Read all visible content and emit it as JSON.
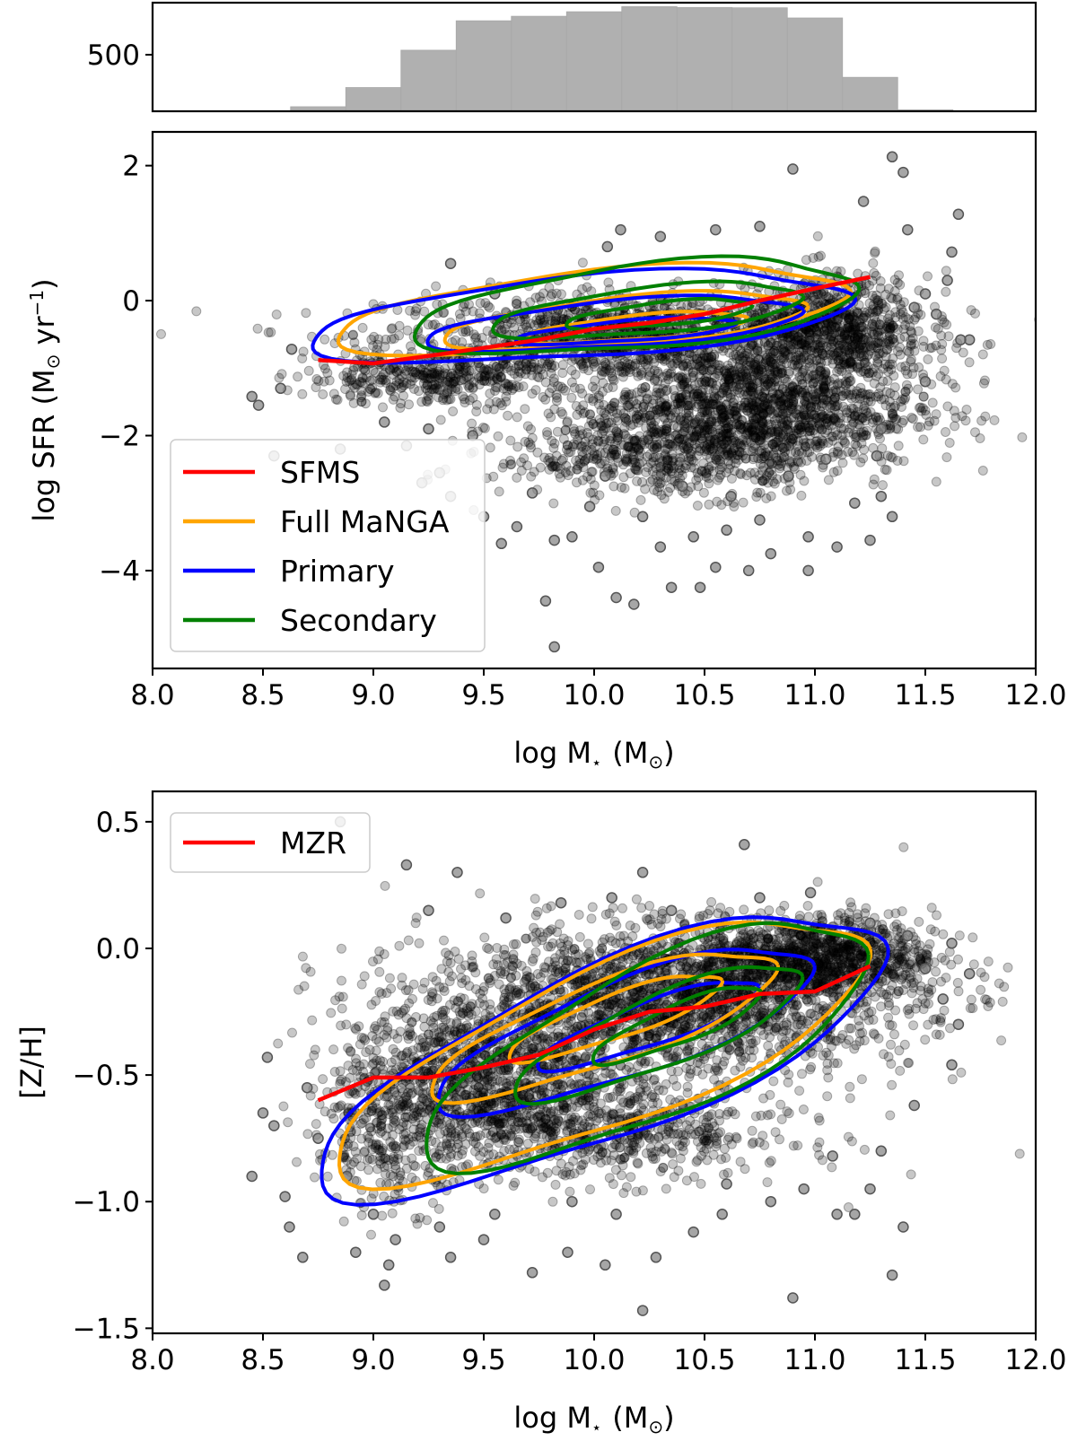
{
  "colors": {
    "sfms": "#ff0000",
    "full_manga": "#ffa500",
    "primary": "#0000ff",
    "secondary": "#008000",
    "hist_bar": "#b0b0b0",
    "points": "#000000"
  },
  "chart_data": [
    {
      "panel": "histogram",
      "type": "bar",
      "xlim": [
        8.0,
        12.0
      ],
      "ylim": [
        0,
        960
      ],
      "ytick_values": [
        500
      ],
      "ytick_labels": [
        "500"
      ],
      "bin_edges": [
        8.625,
        8.875,
        9.125,
        9.375,
        9.625,
        9.875,
        10.125,
        10.375,
        10.625,
        10.875,
        11.125,
        11.375,
        11.625
      ],
      "values": [
        40,
        210,
        540,
        800,
        840,
        880,
        925,
        918,
        915,
        825,
        300,
        12
      ],
      "x": [
        8.75,
        9.0,
        9.25,
        9.5,
        9.75,
        10.0,
        10.25,
        10.5,
        10.75,
        11.0,
        11.25,
        11.5
      ]
    },
    {
      "panel": "sfr",
      "type": "scatter",
      "xlim": [
        8.0,
        12.0
      ],
      "ylim": [
        -5.45,
        2.5
      ],
      "xlabel": "log M",
      "xlabel_sub": "⋆",
      "xlabel_unit": "(M",
      "xlabel_unit_sub": "⊙",
      "xlabel_close": ")",
      "ylabel": "log SFR (M",
      "ylabel_sub": "⊙",
      "ylabel_rest": " yr",
      "ylabel_sup": "−1",
      "ylabel_close": ")",
      "xtick_values": [
        8.0,
        8.5,
        9.0,
        9.5,
        10.0,
        10.5,
        11.0,
        11.5,
        12.0
      ],
      "xtick_labels": [
        "8.0",
        "8.5",
        "9.0",
        "9.5",
        "10.0",
        "10.5",
        "11.0",
        "11.5",
        "12.0"
      ],
      "ytick_values": [
        2,
        0,
        -2,
        -4
      ],
      "ytick_labels": [
        "2",
        "0",
        "−2",
        "−4"
      ],
      "legend_position": "lower-left",
      "legend": [
        "SFMS",
        "Full MaNGA",
        "Primary",
        "Secondary"
      ],
      "relation": {
        "name": "SFMS",
        "x": [
          8.75,
          9.0,
          9.25,
          9.5,
          9.75,
          10.0,
          10.25,
          10.5,
          10.75,
          11.0,
          11.25
        ],
        "y": [
          -0.88,
          -0.93,
          -0.82,
          -0.7,
          -0.58,
          -0.42,
          -0.33,
          -0.2,
          0.0,
          0.18,
          0.35
        ]
      },
      "contours": [
        {
          "series": "Full MaNGA",
          "level": "outer",
          "cx": 10.0,
          "cy": -0.15,
          "rx": 1.15,
          "ry": 0.58,
          "tilt": 0.28
        },
        {
          "series": "Full MaNGA",
          "level": "middle",
          "cx": 10.15,
          "cy": -0.3,
          "rx": 0.82,
          "ry": 0.35,
          "tilt": 0.28
        },
        {
          "series": "Full MaNGA",
          "level": "inner",
          "cx": 10.2,
          "cy": -0.4,
          "rx": 0.5,
          "ry": 0.18,
          "tilt": 0.28
        },
        {
          "series": "Primary",
          "level": "outer",
          "cx": 9.95,
          "cy": -0.25,
          "rx": 1.22,
          "ry": 0.6,
          "tilt": 0.25
        },
        {
          "series": "Primary",
          "level": "middle",
          "cx": 10.1,
          "cy": -0.35,
          "rx": 0.85,
          "ry": 0.34,
          "tilt": 0.25
        },
        {
          "series": "Primary",
          "level": "inner",
          "cx": 10.15,
          "cy": -0.45,
          "rx": 0.5,
          "ry": 0.15,
          "tilt": 0.25
        },
        {
          "series": "Secondary",
          "level": "outer",
          "cx": 10.2,
          "cy": -0.1,
          "rx": 1.0,
          "ry": 0.62,
          "tilt": 0.32
        },
        {
          "series": "Secondary",
          "level": "middle",
          "cx": 10.25,
          "cy": -0.15,
          "rx": 0.7,
          "ry": 0.34,
          "tilt": 0.32
        },
        {
          "series": "Secondary",
          "level": "inner",
          "cx": 10.3,
          "cy": -0.2,
          "rx": 0.42,
          "ry": 0.17,
          "tilt": 0.32
        }
      ],
      "points": [
        [
          11.35,
          2.13
        ],
        [
          11.4,
          1.9
        ],
        [
          10.9,
          1.95
        ],
        [
          11.22,
          1.47
        ],
        [
          11.42,
          1.05
        ],
        [
          11.65,
          1.28
        ],
        [
          11.62,
          0.72
        ],
        [
          11.7,
          -0.58
        ],
        [
          11.66,
          -0.58
        ],
        [
          11.55,
          -0.2
        ],
        [
          11.5,
          0.1
        ],
        [
          11.28,
          -2.3
        ],
        [
          11.3,
          -2.9
        ],
        [
          11.35,
          -3.2
        ],
        [
          11.25,
          -3.55
        ],
        [
          11.1,
          -3.65
        ],
        [
          10.97,
          -3.5
        ],
        [
          10.97,
          -4.0
        ],
        [
          10.8,
          -3.75
        ],
        [
          10.7,
          -4.0
        ],
        [
          10.55,
          -3.95
        ],
        [
          10.48,
          -4.25
        ],
        [
          10.35,
          -4.25
        ],
        [
          10.3,
          -3.65
        ],
        [
          10.18,
          -4.5
        ],
        [
          10.1,
          -4.4
        ],
        [
          10.02,
          -3.95
        ],
        [
          9.9,
          -3.5
        ],
        [
          9.82,
          -3.55
        ],
        [
          9.78,
          -4.45
        ],
        [
          9.82,
          -5.13
        ],
        [
          9.65,
          -3.35
        ],
        [
          9.58,
          -3.6
        ],
        [
          9.5,
          -3.2
        ],
        [
          9.35,
          -2.9
        ],
        [
          9.3,
          -2.55
        ],
        [
          9.22,
          -2.7
        ],
        [
          9.15,
          -2.15
        ],
        [
          8.85,
          -2.2
        ],
        [
          8.55,
          -2.3
        ],
        [
          8.48,
          -1.55
        ],
        [
          8.58,
          -1.3
        ],
        [
          8.45,
          -1.42
        ],
        [
          8.63,
          -0.72
        ],
        [
          9.35,
          0.55
        ],
        [
          10.06,
          0.8
        ],
        [
          10.3,
          0.95
        ],
        [
          10.55,
          1.05
        ],
        [
          10.12,
          1.05
        ],
        [
          10.75,
          1.1
        ],
        [
          9.55,
          0.1
        ],
        [
          10.62,
          -2.9
        ],
        [
          10.4,
          -2.75
        ],
        [
          10.22,
          -3.2
        ],
        [
          9.98,
          -3.05
        ],
        [
          9.72,
          -2.85
        ],
        [
          10.88,
          -2.6
        ],
        [
          11.05,
          -2.35
        ],
        [
          11.18,
          -3.0
        ],
        [
          10.6,
          -3.4
        ],
        [
          9.45,
          -2.0
        ],
        [
          9.25,
          -1.9
        ],
        [
          9.05,
          -1.8
        ],
        [
          10.45,
          -3.5
        ],
        [
          10.75,
          -3.25
        ],
        [
          10.05,
          -2.6
        ],
        [
          11.45,
          -0.1
        ],
        [
          11.5,
          -1.2
        ],
        [
          11.3,
          -1.9
        ],
        [
          11.6,
          0.3
        ]
      ],
      "dense_regions": [
        {
          "cx": 10.2,
          "cy": -0.55,
          "rx": 1.15,
          "ry": 0.68,
          "n": 1300
        },
        {
          "cx": 10.7,
          "cy": -1.6,
          "rx": 0.75,
          "ry": 0.85,
          "n": 1300
        },
        {
          "cx": 11.1,
          "cy": -0.45,
          "rx": 0.42,
          "ry": 0.85,
          "n": 650
        },
        {
          "cx": 10.35,
          "cy": -2.3,
          "rx": 0.8,
          "ry": 0.6,
          "n": 550
        },
        {
          "cx": 9.25,
          "cy": -1.15,
          "rx": 0.55,
          "ry": 0.42,
          "n": 350
        }
      ]
    },
    {
      "panel": "metallicity",
      "type": "scatter",
      "xlim": [
        8.0,
        12.0
      ],
      "ylim": [
        -1.52,
        0.62
      ],
      "xlabel": "log M",
      "xlabel_sub": "⋆",
      "xlabel_unit": "(M",
      "xlabel_unit_sub": "⊙",
      "xlabel_close": ")",
      "ylabel": "[Z/H]",
      "xtick_values": [
        8.0,
        8.5,
        9.0,
        9.5,
        10.0,
        10.5,
        11.0,
        11.5,
        12.0
      ],
      "xtick_labels": [
        "8.0",
        "8.5",
        "9.0",
        "9.5",
        "10.0",
        "10.5",
        "11.0",
        "11.5",
        "12.0"
      ],
      "ytick_values": [
        0.5,
        0.0,
        -0.5,
        -1.0,
        -1.5
      ],
      "ytick_labels": [
        "0.5",
        "0.0",
        "−0.5",
        "−1.0",
        "−1.5"
      ],
      "legend_position": "top-left",
      "legend": [
        "MZR"
      ],
      "relation": {
        "name": "MZR",
        "x": [
          8.75,
          9.0,
          9.25,
          9.5,
          9.75,
          10.0,
          10.25,
          10.5,
          10.75,
          11.0,
          11.25
        ],
        "y": [
          -0.6,
          -0.51,
          -0.51,
          -0.47,
          -0.42,
          -0.32,
          -0.25,
          -0.23,
          -0.18,
          -0.17,
          -0.07
        ]
      },
      "contours": [
        {
          "series": "Primary",
          "level": "outer",
          "cx": 10.05,
          "cy": -0.42,
          "rx": 1.28,
          "ry": 0.36,
          "tilt": 0.33
        },
        {
          "series": "Primary",
          "level": "middle",
          "cx": 10.15,
          "cy": -0.32,
          "rx": 0.85,
          "ry": 0.2,
          "tilt": 0.3
        },
        {
          "series": "Primary",
          "level": "inner",
          "cx": 10.25,
          "cy": -0.3,
          "rx": 0.5,
          "ry": 0.09,
          "tilt": 0.3
        },
        {
          "series": "Full MaNGA",
          "level": "outer",
          "cx": 10.05,
          "cy": -0.4,
          "rx": 1.2,
          "ry": 0.33,
          "tilt": 0.33
        },
        {
          "series": "Full MaNGA",
          "level": "middle",
          "cx": 10.05,
          "cy": -0.3,
          "rx": 0.78,
          "ry": 0.17,
          "tilt": 0.3
        },
        {
          "series": "Full MaNGA",
          "level": "inner",
          "cx": 10.1,
          "cy": -0.27,
          "rx": 0.48,
          "ry": 0.09,
          "tilt": 0.3
        },
        {
          "series": "Secondary",
          "level": "outer",
          "cx": 10.25,
          "cy": -0.38,
          "rx": 1.0,
          "ry": 0.32,
          "tilt": 0.36
        },
        {
          "series": "Secondary",
          "level": "middle",
          "cx": 10.3,
          "cy": -0.33,
          "rx": 0.65,
          "ry": 0.15,
          "tilt": 0.34
        },
        {
          "series": "Secondary",
          "level": "inner",
          "cx": 10.38,
          "cy": -0.3,
          "rx": 0.38,
          "ry": 0.08,
          "tilt": 0.34
        }
      ],
      "points": [
        [
          8.85,
          0.5
        ],
        [
          10.68,
          0.41
        ],
        [
          9.15,
          0.33
        ],
        [
          9.38,
          0.3
        ],
        [
          10.22,
          0.3
        ],
        [
          8.45,
          -0.9
        ],
        [
          8.5,
          -0.65
        ],
        [
          8.52,
          -0.43
        ],
        [
          8.6,
          -0.98
        ],
        [
          8.62,
          -1.1
        ],
        [
          8.68,
          -1.22
        ],
        [
          8.75,
          -0.75
        ],
        [
          8.92,
          -1.2
        ],
        [
          9.05,
          -1.33
        ],
        [
          9.07,
          -1.25
        ],
        [
          9.35,
          -1.22
        ],
        [
          9.5,
          -1.15
        ],
        [
          9.72,
          -1.28
        ],
        [
          9.88,
          -1.2
        ],
        [
          10.05,
          -1.25
        ],
        [
          10.28,
          -1.22
        ],
        [
          10.22,
          -1.43
        ],
        [
          10.9,
          -1.38
        ],
        [
          11.35,
          -1.29
        ],
        [
          11.4,
          -1.1
        ],
        [
          11.18,
          -1.05
        ],
        [
          11.3,
          -0.8
        ],
        [
          11.45,
          -0.62
        ],
        [
          11.62,
          -0.46
        ],
        [
          11.7,
          -0.1
        ],
        [
          11.62,
          0.02
        ],
        [
          11.65,
          -0.3
        ],
        [
          11.58,
          -0.2
        ],
        [
          11.5,
          -0.08
        ],
        [
          9.55,
          -1.05
        ],
        [
          9.9,
          -1.0
        ],
        [
          10.1,
          -1.05
        ],
        [
          10.58,
          -1.05
        ],
        [
          10.8,
          -1.0
        ],
        [
          11.08,
          -0.82
        ],
        [
          9.0,
          -1.05
        ],
        [
          8.88,
          -0.9
        ],
        [
          9.25,
          0.15
        ],
        [
          9.6,
          0.12
        ],
        [
          9.85,
          0.18
        ],
        [
          10.08,
          0.2
        ],
        [
          10.35,
          0.15
        ],
        [
          10.75,
          0.2
        ],
        [
          10.98,
          0.22
        ],
        [
          11.25,
          0.1
        ],
        [
          11.42,
          0.05
        ],
        [
          8.55,
          -0.7
        ],
        [
          8.7,
          -0.55
        ],
        [
          9.1,
          -1.15
        ],
        [
          9.3,
          -1.1
        ],
        [
          10.45,
          -1.12
        ],
        [
          10.6,
          -0.93
        ],
        [
          10.95,
          -0.95
        ],
        [
          11.25,
          -0.95
        ],
        [
          11.1,
          -1.05
        ]
      ],
      "dense_regions": [
        {
          "cx": 10.35,
          "cy": -0.2,
          "rx": 1.1,
          "ry": 0.28,
          "n": 2100
        },
        {
          "cx": 11.0,
          "cy": -0.03,
          "rx": 0.55,
          "ry": 0.16,
          "n": 900
        },
        {
          "cx": 9.45,
          "cy": -0.5,
          "rx": 0.6,
          "ry": 0.28,
          "n": 900
        },
        {
          "cx": 10.0,
          "cy": -0.72,
          "rx": 0.9,
          "ry": 0.2,
          "n": 700
        },
        {
          "cx": 9.1,
          "cy": -0.75,
          "rx": 0.35,
          "ry": 0.28,
          "n": 260
        }
      ]
    }
  ]
}
